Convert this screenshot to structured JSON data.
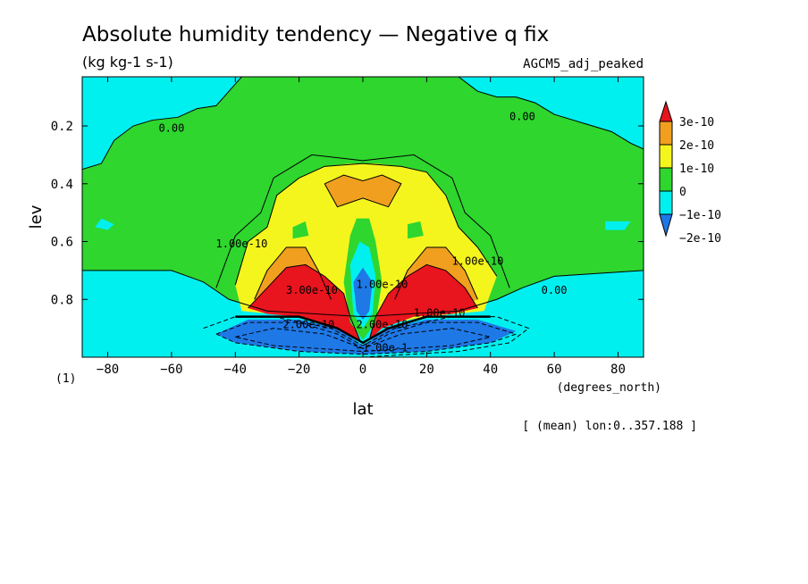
{
  "chart_data": {
    "type": "heatmap",
    "title": "Absolute humidity tendency — Negative q fix",
    "units": "(kg kg-1 s-1)",
    "dataset": "AGCM5_adj_peaked",
    "xlabel": "lat",
    "x_units": "(degrees_north)",
    "ylabel": "lev",
    "y_units": "(1)",
    "note": "[ (mean) lon:0..357.188 ]",
    "xlim": [
      -88,
      88
    ],
    "ylim": [
      1.0,
      0.03
    ],
    "x_ticks": [
      -80,
      -60,
      -40,
      -20,
      0,
      20,
      40,
      60,
      80
    ],
    "x_tick_labels": [
      "−80",
      "−60",
      "−40",
      "−20",
      "0",
      "20",
      "40",
      "60",
      "80"
    ],
    "y_ticks": [
      0.2,
      0.4,
      0.6,
      0.8
    ],
    "y_tick_labels": [
      "0.2",
      "0.4",
      "0.6",
      "0.8"
    ],
    "colorbar": {
      "levels": [
        {
          "label": "3e-10",
          "color": "#e8141e"
        },
        {
          "label": "2e-10",
          "color": "#f0a01e"
        },
        {
          "label": "1e-10",
          "color": "#f5f51e"
        },
        {
          "label": "0",
          "color": "#2ed62e"
        },
        {
          "label": "−1e-10",
          "color": "#00f0f0"
        },
        {
          "label": "−2e-10",
          "color": "#1e78e6"
        }
      ]
    },
    "contour_labels": [
      {
        "text": "0.00",
        "x": -60,
        "y": 0.22
      },
      {
        "text": "0.00",
        "x": 50,
        "y": 0.18
      },
      {
        "text": "0.00",
        "x": 60,
        "y": 0.78
      },
      {
        "text": "1.00e-10",
        "x": -38,
        "y": 0.62
      },
      {
        "text": "1.00e-10",
        "x": 36,
        "y": 0.68
      },
      {
        "text": "3.00e-10",
        "x": -16,
        "y": 0.78
      },
      {
        "text": "1.00e-10",
        "x": 6,
        "y": 0.76
      },
      {
        "text": "1.00e-10",
        "x": 24,
        "y": 0.86
      },
      {
        "text": "2.00e-10",
        "x": -17,
        "y": 0.9
      },
      {
        "text": "2.00e-10",
        "x": 6,
        "y": 0.9
      },
      {
        "text": "−1.00e-1",
        "x": 6,
        "y": 0.98
      }
    ],
    "grid": false,
    "legend": "right"
  }
}
